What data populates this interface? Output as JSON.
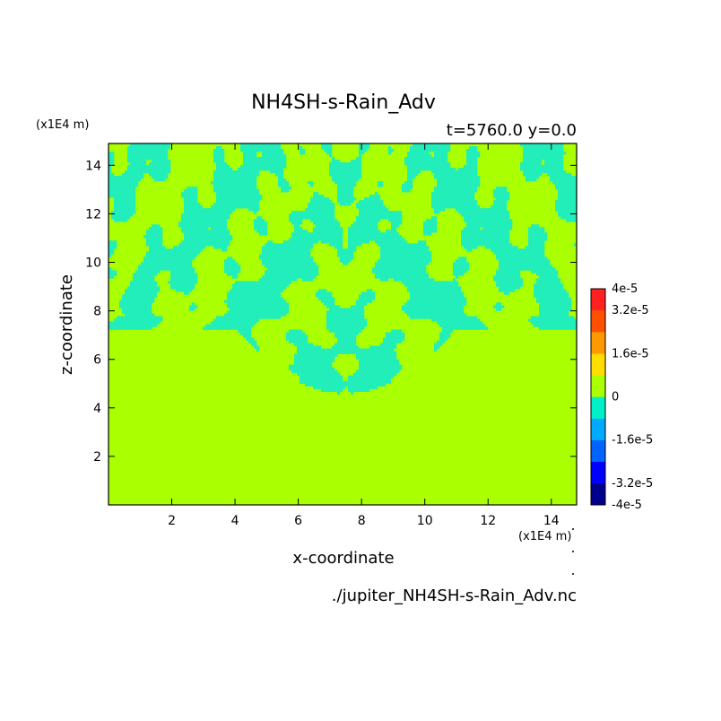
{
  "chart_data": {
    "type": "heatmap",
    "title": "NH4SH-s-Rain_Adv",
    "subtitle": "t=5760.0 y=0.0",
    "xlabel": "x-coordinate",
    "ylabel": "z-coordinate",
    "x_unit": "(x1E4 m)",
    "y_unit": "(x1E4 m)",
    "xlim": [
      0,
      14.8
    ],
    "ylim": [
      0,
      14.9
    ],
    "x_ticks": [
      2,
      4,
      6,
      8,
      10,
      12,
      14
    ],
    "y_ticks": [
      2,
      4,
      6,
      8,
      10,
      12,
      14
    ],
    "field_description": "mostly 0 below z~4.6; interleaved 0 and slightly negative (0 to -8e-6) filaments above, symmetric about x~7.5",
    "colorbar": {
      "levels": [
        "-4e-5",
        "-3.2e-5",
        "-1.6e-5",
        "0",
        "1.6e-5",
        "3.2e-5",
        "4e-5"
      ],
      "vmin": -4e-05,
      "vmax": 4e-05,
      "colors": [
        "#00008c",
        "#0000ff",
        "#0064ff",
        "#00aaff",
        "#00f0c8",
        "#aaff00",
        "#ffdd00",
        "#ff9900",
        "#ff5000",
        "#ff2020"
      ]
    },
    "field_colors": {
      "zero": "#aaff00",
      "negative": "#22eebb"
    },
    "footer": "./jupiter_NH4SH-s-Rain_Adv.nc"
  }
}
